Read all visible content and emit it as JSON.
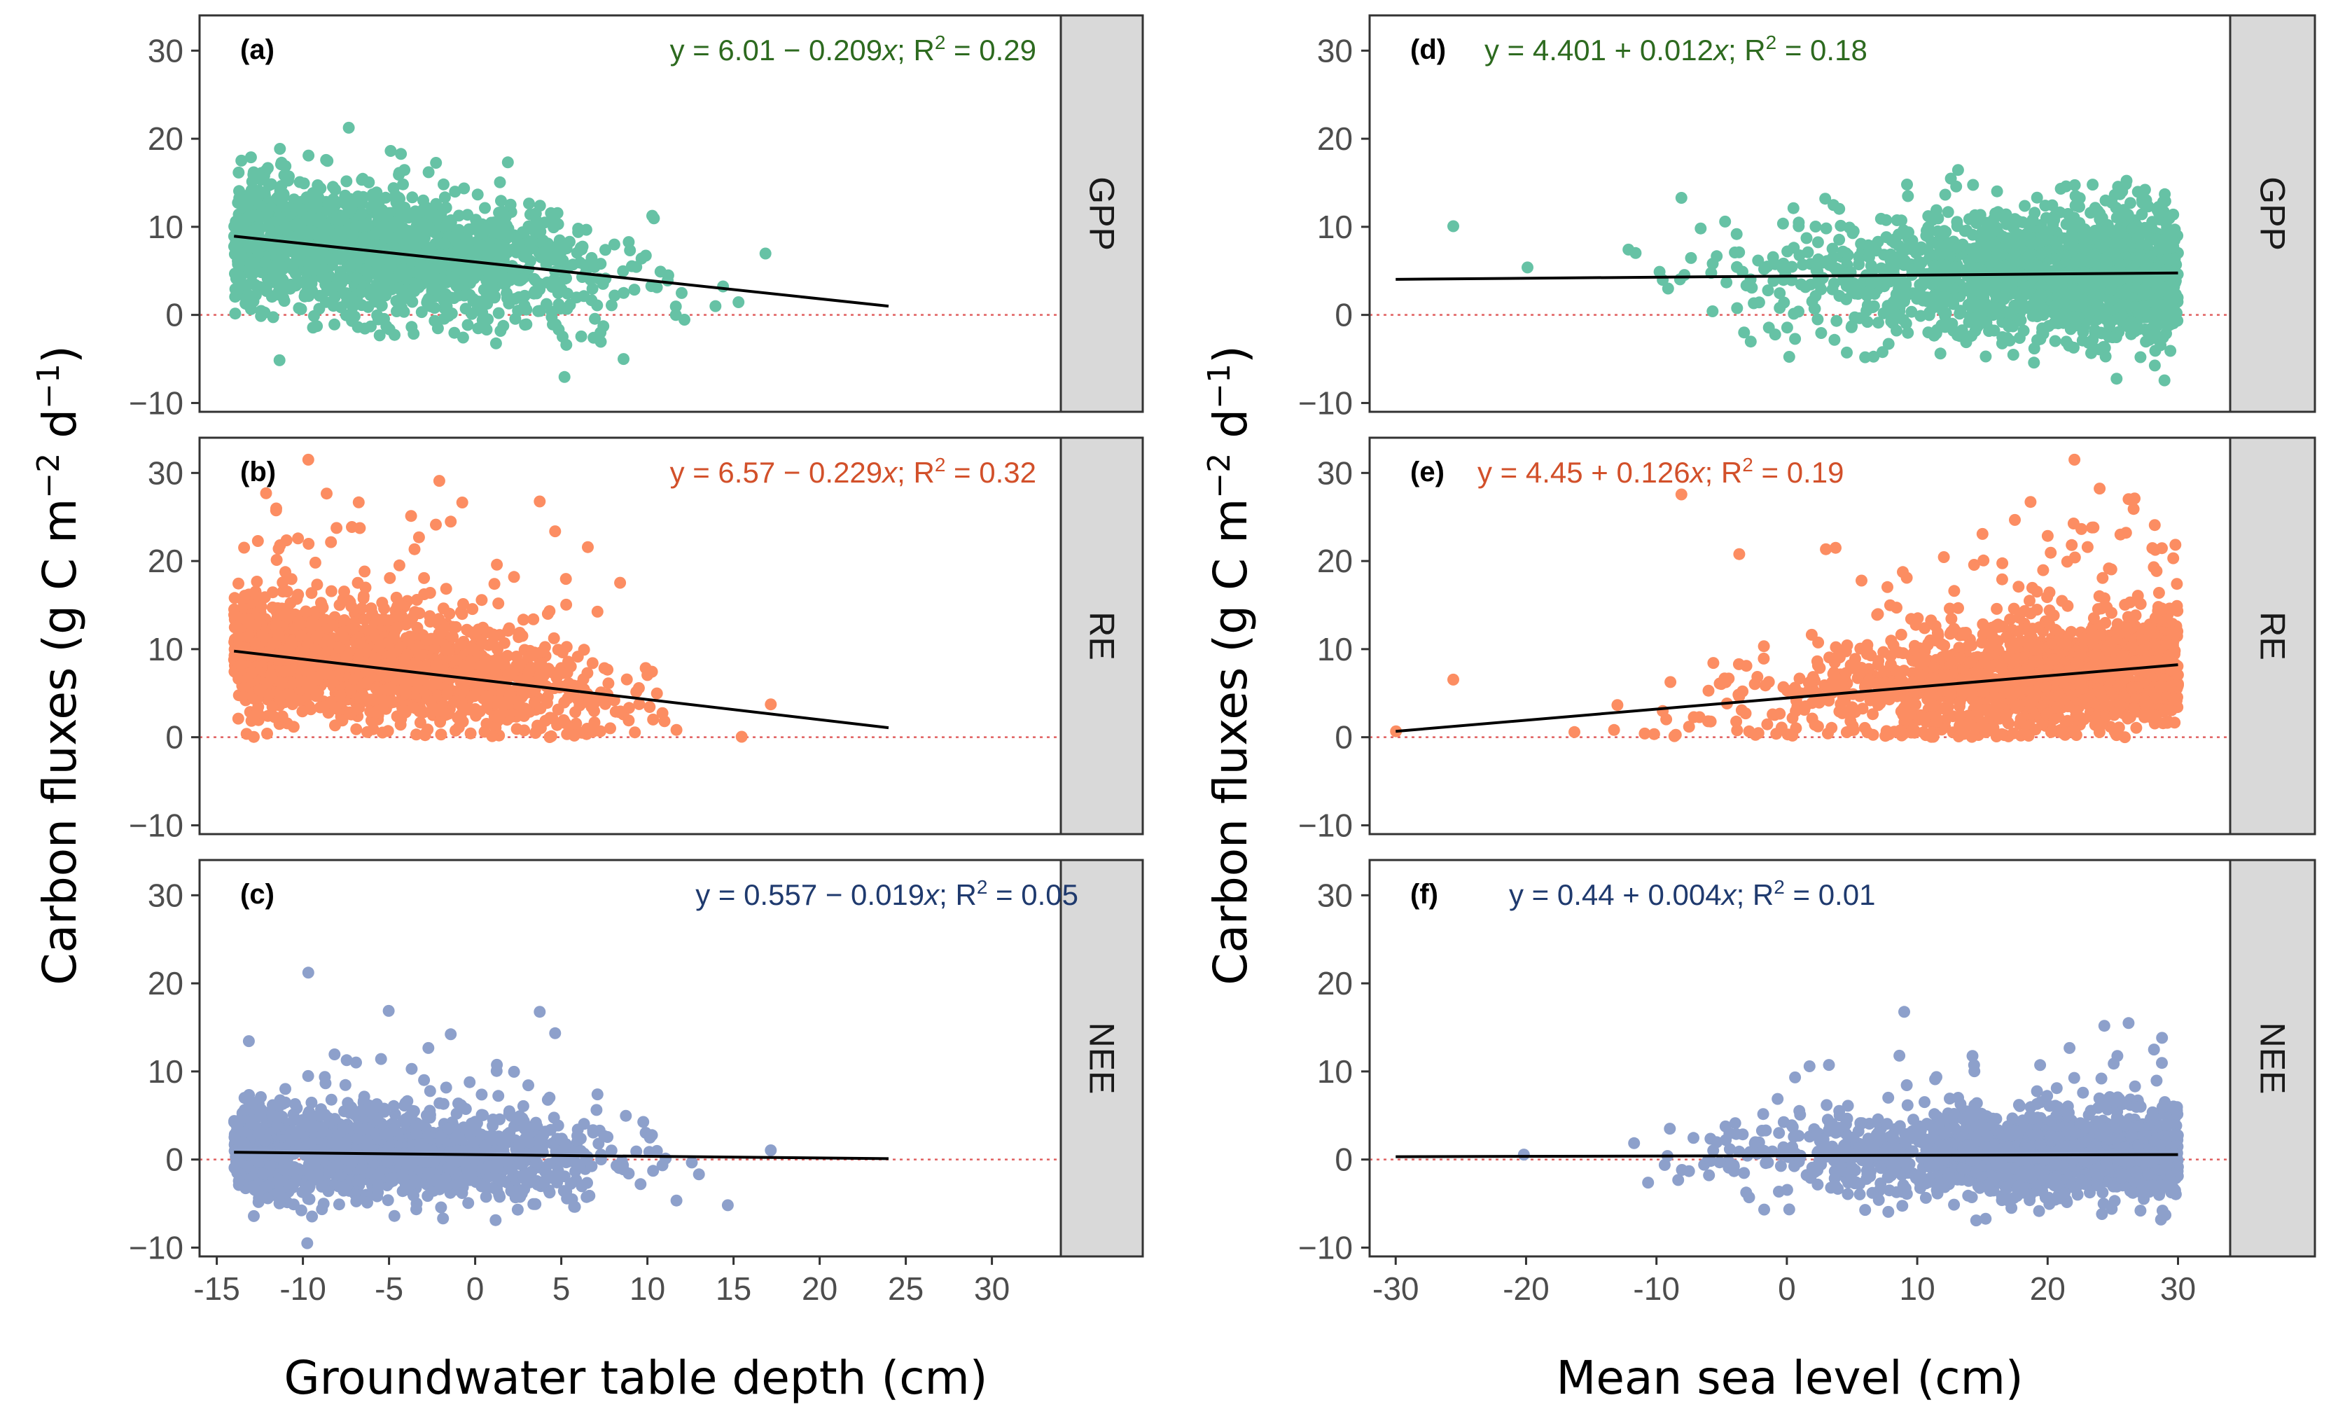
{
  "figure": {
    "ylabel": "Carbon fluxes (g C m",
    "ylabel_exp1": "−2",
    "ylabel_mid": " d",
    "ylabel_exp2": "−1",
    "ylabel_end": ")"
  },
  "chart_data": [
    {
      "type": "scatter",
      "column": "left",
      "xlabel": "Groundwater table depth (cm)",
      "xlim": [
        -16,
        34
      ],
      "xticks": [
        -15,
        -10,
        -5,
        0,
        5,
        10,
        15,
        20,
        25,
        30
      ],
      "xtick_labels": [
        "-15",
        "-10",
        "-5",
        "0",
        "5",
        "10",
        "15",
        "20",
        "25",
        "30"
      ],
      "panels": [
        {
          "tag": "(a)",
          "strip": "GPP",
          "color": "#66c2a5",
          "eq_color": "#2d6a1f",
          "ylim": [
            -11,
            34
          ],
          "yticks": [
            -10,
            0,
            10,
            20,
            30
          ],
          "ytick_labels": [
            "−10",
            "0",
            "10",
            "20",
            "30"
          ],
          "fit": {
            "intercept": 6.01,
            "slope": -0.209,
            "x_range": [
              -14,
              24
            ]
          },
          "equation": {
            "prefix": "y = 6.01 − 0.209",
            "var": "x",
            "mid": "; R",
            "sup": "2",
            "suffix": " = 0.29"
          },
          "x_range": [
            -14,
            24
          ],
          "n_points": 1600
        },
        {
          "tag": "(b)",
          "strip": "RE",
          "color": "#fc8d62",
          "eq_color": "#d2502a",
          "ylim": [
            -11,
            34
          ],
          "yticks": [
            -10,
            0,
            10,
            20,
            30
          ],
          "ytick_labels": [
            "−10",
            "0",
            "10",
            "20",
            "30"
          ],
          "fit": {
            "intercept": 6.57,
            "slope": -0.229,
            "x_range": [
              -14,
              24
            ]
          },
          "equation": {
            "prefix": "y = 6.57 − 0.229",
            "var": "x",
            "mid": "; R",
            "sup": "2",
            "suffix": " = 0.32"
          },
          "x_range": [
            -14,
            24
          ],
          "n_points": 1600
        },
        {
          "tag": "(c)",
          "strip": "NEE",
          "color": "#8da0cb",
          "eq_color": "#1f3a6e",
          "ylim": [
            -11,
            34
          ],
          "yticks": [
            -10,
            0,
            10,
            20,
            30
          ],
          "ytick_labels": [
            "−10",
            "0",
            "10",
            "20",
            "30"
          ],
          "fit": {
            "intercept": 0.557,
            "slope": -0.019,
            "x_range": [
              -14,
              24
            ]
          },
          "equation": {
            "prefix": "y = 0.557 − 0.019",
            "var": "x",
            "mid": "; R",
            "sup": "2",
            "suffix": " = 0.05"
          },
          "x_range": [
            -14,
            24
          ],
          "n_points": 1600
        }
      ]
    },
    {
      "type": "scatter",
      "column": "right",
      "xlabel": "Mean sea level (cm)",
      "xlim": [
        -32,
        34
      ],
      "xticks": [
        -30,
        -20,
        -10,
        0,
        10,
        20,
        30
      ],
      "xtick_labels": [
        "-30",
        "-20",
        "-10",
        "0",
        "10",
        "20",
        "30"
      ],
      "panels": [
        {
          "tag": "(d)",
          "strip": "GPP",
          "color": "#66c2a5",
          "eq_color": "#2d6a1f",
          "ylim": [
            -11,
            34
          ],
          "yticks": [
            -10,
            0,
            10,
            20,
            30
          ],
          "ytick_labels": [
            "−10",
            "0",
            "10",
            "20",
            "30"
          ],
          "fit": {
            "intercept": 4.401,
            "slope": 0.012,
            "x_range": [
              -30,
              30
            ]
          },
          "equation": {
            "prefix": "y = 4.401 + 0.012",
            "var": "x",
            "mid": "; R",
            "sup": "2",
            "suffix": " = 0.18"
          },
          "x_range": [
            -30,
            30
          ],
          "n_points": 1700
        },
        {
          "tag": "(e)",
          "strip": "RE",
          "color": "#fc8d62",
          "eq_color": "#d2502a",
          "ylim": [
            -11,
            34
          ],
          "yticks": [
            -10,
            0,
            10,
            20,
            30
          ],
          "ytick_labels": [
            "−10",
            "0",
            "10",
            "20",
            "30"
          ],
          "fit": {
            "intercept": 4.45,
            "slope": 0.126,
            "x_range": [
              -30,
              30
            ]
          },
          "equation": {
            "prefix": "y = 4.45 + 0.126",
            "var": "x",
            "mid": "; R",
            "sup": "2",
            "suffix": " = 0.19"
          },
          "x_range": [
            -30,
            30
          ],
          "n_points": 1700
        },
        {
          "tag": "(f)",
          "strip": "NEE",
          "color": "#8da0cb",
          "eq_color": "#1f3a6e",
          "ylim": [
            -11,
            34
          ],
          "yticks": [
            -10,
            0,
            10,
            20,
            30
          ],
          "ytick_labels": [
            "−10",
            "0",
            "10",
            "20",
            "30"
          ],
          "fit": {
            "intercept": 0.44,
            "slope": 0.004,
            "x_range": [
              -30,
              30
            ]
          },
          "equation": {
            "prefix": "y = 0.44 + 0.004",
            "var": "x",
            "mid": "; R",
            "sup": "2",
            "suffix": " = 0.01"
          },
          "x_range": [
            -30,
            30
          ],
          "n_points": 1700
        }
      ]
    }
  ]
}
